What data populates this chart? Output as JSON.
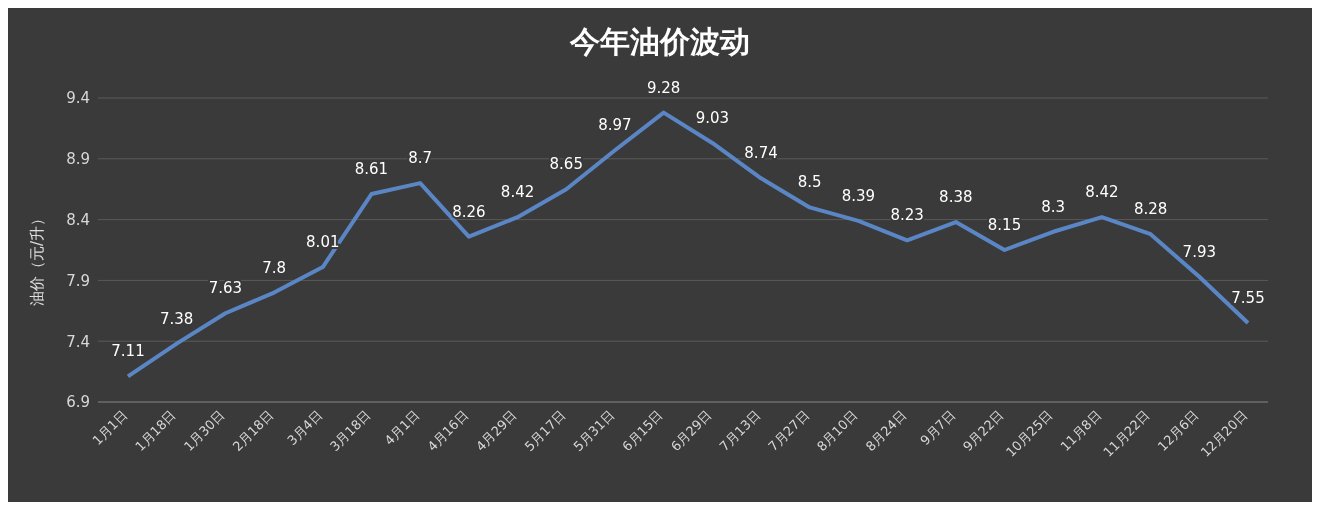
{
  "chart_data": {
    "type": "line",
    "title": "今年油价波动",
    "ylabel": "油价（元/升）",
    "categories": [
      "1月1日",
      "1月18日",
      "1月30日",
      "2月18日",
      "3月4日",
      "3月18日",
      "4月1日",
      "4月16日",
      "4月29日",
      "5月17日",
      "5月31日",
      "6月15日",
      "6月29日",
      "7月13日",
      "7月27日",
      "8月10日",
      "8月24日",
      "9月7日",
      "9月22日",
      "10月25日",
      "11月8日",
      "11月22日",
      "12月6日",
      "12月20日"
    ],
    "series": [
      {
        "color": "#5b86c5",
        "values": [
          7.11,
          7.38,
          7.63,
          7.8,
          8.01,
          8.61,
          8.7,
          8.26,
          8.42,
          8.65,
          8.97,
          9.28,
          9.03,
          8.74,
          8.5,
          8.39,
          8.23,
          8.38,
          8.15,
          8.3,
          8.42,
          8.28,
          7.93,
          7.55
        ]
      }
    ],
    "ylim": [
      6.9,
      9.4
    ],
    "yticks": [
      6.9,
      7.4,
      7.9,
      8.4,
      8.9,
      9.4
    ],
    "grid": "y",
    "data_labels": true,
    "marker": "none",
    "line_style": "solid",
    "legend": false
  }
}
